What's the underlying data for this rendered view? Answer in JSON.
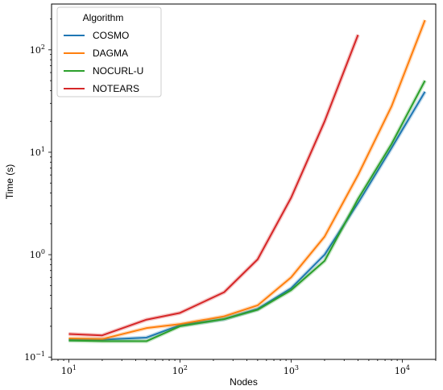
{
  "chart_data": {
    "type": "line",
    "xlabel": "Nodes",
    "ylabel": "Time (s)",
    "xscale": "log",
    "yscale": "log",
    "xlim": [
      7,
      20000
    ],
    "ylim": [
      0.095,
      280
    ],
    "x_ticks": [
      {
        "value": 10,
        "base": "10",
        "exp": "1"
      },
      {
        "value": 100,
        "base": "10",
        "exp": "2"
      },
      {
        "value": 1000,
        "base": "10",
        "exp": "3"
      },
      {
        "value": 10000,
        "base": "10",
        "exp": "4"
      }
    ],
    "y_ticks": [
      {
        "value": 0.1,
        "base": "10",
        "exp": "−1"
      },
      {
        "value": 1,
        "base": "10",
        "exp": "0"
      },
      {
        "value": 10,
        "base": "10",
        "exp": "1"
      },
      {
        "value": 100,
        "base": "10",
        "exp": "2"
      }
    ],
    "grid": false,
    "legend": {
      "title": "Algorithm",
      "position": "top-left"
    },
    "series": [
      {
        "name": "COSMO",
        "color": "#1f77b4",
        "x": [
          10,
          20,
          50,
          100,
          250,
          500,
          1000,
          2000,
          4000,
          8000,
          16000
        ],
        "y": [
          0.148,
          0.148,
          0.155,
          0.205,
          0.235,
          0.295,
          0.47,
          1.0,
          3.2,
          11.0,
          39
        ]
      },
      {
        "name": "DAGMA",
        "color": "#ff7f0e",
        "x": [
          10,
          20,
          50,
          100,
          250,
          500,
          1000,
          2000,
          4000,
          8000,
          16000
        ],
        "y": [
          0.152,
          0.15,
          0.192,
          0.21,
          0.25,
          0.32,
          0.6,
          1.5,
          6.0,
          28,
          195
        ]
      },
      {
        "name": "NOCURL-U",
        "color": "#2ca02c",
        "x": [
          10,
          20,
          50,
          100,
          250,
          500,
          1000,
          2000,
          4000,
          8000,
          16000
        ],
        "y": [
          0.145,
          0.143,
          0.143,
          0.2,
          0.235,
          0.29,
          0.45,
          0.87,
          3.5,
          12.0,
          50
        ]
      },
      {
        "name": "NOTEARS",
        "color": "#d62728",
        "x": [
          10,
          20,
          50,
          100,
          250,
          500,
          1000,
          2000,
          4000
        ],
        "y": [
          0.168,
          0.163,
          0.232,
          0.27,
          0.43,
          0.9,
          3.6,
          20,
          140
        ]
      }
    ]
  }
}
